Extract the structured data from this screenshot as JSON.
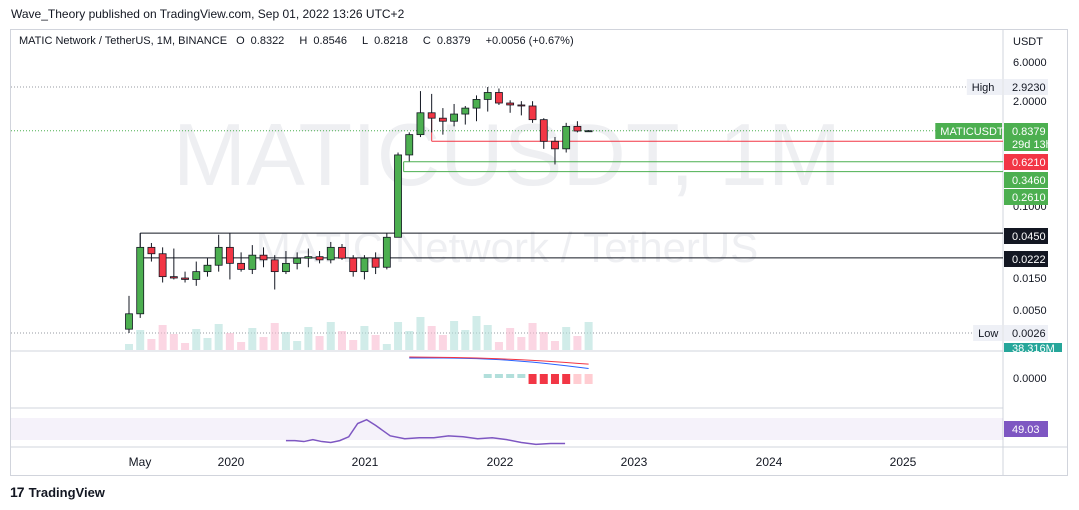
{
  "publisher": "Wave_Theory published on TradingView.com, Sep 01, 2022 13:26 UTC+2",
  "brand": {
    "name": "TradingView",
    "logo_mark": "17"
  },
  "header": {
    "symbol_line": "MATIC Network / TetherUS, 1M, BINANCE",
    "o_label": "O",
    "o": "0.8322",
    "h_label": "H",
    "h": "0.8546",
    "l_label": "L",
    "l": "0.8218",
    "c_label": "C",
    "c": "0.8379",
    "change": "+0.0056 (+0.67%)"
  },
  "watermark": {
    "symbol": "MATICUSDT, 1M",
    "name": "MATIC Network / TetherUS"
  },
  "colors": {
    "up": "#4caf50",
    "down": "#f23645",
    "grid": "#f0f3fa",
    "border": "#d1d4dc",
    "rsi": "#7e57c2",
    "macd": "#2962ff",
    "signal": "#f23645",
    "vol_up": "#b2dfdb",
    "vol_down": "#f8bbd0"
  },
  "chart_data": {
    "type": "candlestick",
    "scale": "log",
    "currency_label": "USDT",
    "x_ticks": [
      "May",
      "2020",
      "2021",
      "2022",
      "2023",
      "2024",
      "2025"
    ],
    "y_ticks": [
      "6.0000",
      "2.0000",
      "0.1000",
      "0.0150",
      "0.0050",
      "0.0000"
    ],
    "price_labels": [
      {
        "text": "2.9230",
        "tag": "High",
        "style": "plain"
      },
      {
        "text": "0.8379",
        "tag": "MATICUSDT",
        "sub": "29d 13h",
        "style": "green"
      },
      {
        "text": "0.6210",
        "style": "red"
      },
      {
        "text": "0.3460",
        "style": "green"
      },
      {
        "text": "0.2610",
        "style": "green"
      },
      {
        "text": "0.0450",
        "style": "black"
      },
      {
        "text": "0.0222",
        "style": "black"
      },
      {
        "text": "0.0026",
        "tag": "Low",
        "style": "plain"
      }
    ],
    "volume_label": "38.316M",
    "rsi_value": "49.03",
    "horizontal_levels": [
      0.621,
      0.346,
      0.261,
      0.045,
      0.0222
    ],
    "candles": [
      {
        "t": "2019-04",
        "o": 0.0029,
        "h": 0.0075,
        "l": 0.0026,
        "c": 0.0045
      },
      {
        "t": "2019-05",
        "o": 0.0045,
        "h": 0.045,
        "l": 0.004,
        "c": 0.03
      },
      {
        "t": "2019-06",
        "o": 0.03,
        "h": 0.034,
        "l": 0.02,
        "c": 0.025
      },
      {
        "t": "2019-07",
        "o": 0.025,
        "h": 0.03,
        "l": 0.011,
        "c": 0.013
      },
      {
        "t": "2019-08",
        "o": 0.013,
        "h": 0.029,
        "l": 0.012,
        "c": 0.0125
      },
      {
        "t": "2019-09",
        "o": 0.0125,
        "h": 0.015,
        "l": 0.011,
        "c": 0.012
      },
      {
        "t": "2019-10",
        "o": 0.012,
        "h": 0.02,
        "l": 0.01,
        "c": 0.015
      },
      {
        "t": "2019-11",
        "o": 0.015,
        "h": 0.022,
        "l": 0.013,
        "c": 0.018
      },
      {
        "t": "2019-12",
        "o": 0.018,
        "h": 0.043,
        "l": 0.015,
        "c": 0.03
      },
      {
        "t": "2020-01",
        "o": 0.03,
        "h": 0.045,
        "l": 0.012,
        "c": 0.019
      },
      {
        "t": "2020-02",
        "o": 0.019,
        "h": 0.026,
        "l": 0.015,
        "c": 0.016
      },
      {
        "t": "2020-03",
        "o": 0.016,
        "h": 0.032,
        "l": 0.014,
        "c": 0.024
      },
      {
        "t": "2020-04",
        "o": 0.024,
        "h": 0.03,
        "l": 0.017,
        "c": 0.021
      },
      {
        "t": "2020-05",
        "o": 0.021,
        "h": 0.024,
        "l": 0.009,
        "c": 0.015
      },
      {
        "t": "2020-06",
        "o": 0.015,
        "h": 0.027,
        "l": 0.014,
        "c": 0.019
      },
      {
        "t": "2020-07",
        "o": 0.019,
        "h": 0.026,
        "l": 0.016,
        "c": 0.022
      },
      {
        "t": "2020-08",
        "o": 0.022,
        "h": 0.029,
        "l": 0.017,
        "c": 0.023
      },
      {
        "t": "2020-09",
        "o": 0.023,
        "h": 0.027,
        "l": 0.019,
        "c": 0.021
      },
      {
        "t": "2020-10",
        "o": 0.021,
        "h": 0.035,
        "l": 0.019,
        "c": 0.03
      },
      {
        "t": "2020-11",
        "o": 0.03,
        "h": 0.033,
        "l": 0.021,
        "c": 0.022
      },
      {
        "t": "2020-12",
        "o": 0.022,
        "h": 0.024,
        "l": 0.013,
        "c": 0.015
      },
      {
        "t": "2021-01",
        "o": 0.015,
        "h": 0.024,
        "l": 0.012,
        "c": 0.022
      },
      {
        "t": "2021-02",
        "o": 0.022,
        "h": 0.026,
        "l": 0.014,
        "c": 0.017
      },
      {
        "t": "2021-03",
        "o": 0.017,
        "h": 0.045,
        "l": 0.016,
        "c": 0.04
      },
      {
        "t": "2021-04",
        "o": 0.04,
        "h": 0.45,
        "l": 0.04,
        "c": 0.42
      },
      {
        "t": "2021-05",
        "o": 0.42,
        "h": 0.8,
        "l": 0.35,
        "c": 0.75
      },
      {
        "t": "2021-06",
        "o": 0.75,
        "h": 2.6,
        "l": 0.7,
        "c": 1.4
      },
      {
        "t": "2021-07",
        "o": 1.4,
        "h": 2.4,
        "l": 0.8,
        "c": 1.2
      },
      {
        "t": "2021-08",
        "o": 1.2,
        "h": 1.6,
        "l": 0.75,
        "c": 1.1
      },
      {
        "t": "2021-09",
        "o": 1.1,
        "h": 1.8,
        "l": 0.95,
        "c": 1.35
      },
      {
        "t": "2021-10",
        "o": 1.35,
        "h": 1.7,
        "l": 1.0,
        "c": 1.6
      },
      {
        "t": "2021-11",
        "o": 1.6,
        "h": 2.3,
        "l": 1.1,
        "c": 2.05
      },
      {
        "t": "2021-12",
        "o": 2.05,
        "h": 2.92,
        "l": 1.45,
        "c": 2.5
      },
      {
        "t": "2022-01",
        "o": 2.5,
        "h": 2.8,
        "l": 1.75,
        "c": 1.85
      },
      {
        "t": "2022-02",
        "o": 1.85,
        "h": 2.0,
        "l": 1.4,
        "c": 1.75
      },
      {
        "t": "2022-03",
        "o": 1.75,
        "h": 1.95,
        "l": 1.3,
        "c": 1.7
      },
      {
        "t": "2022-04",
        "o": 1.7,
        "h": 1.95,
        "l": 1.05,
        "c": 1.15
      },
      {
        "t": "2022-05",
        "o": 1.15,
        "h": 1.2,
        "l": 0.5,
        "c": 0.62
      },
      {
        "t": "2022-06",
        "o": 0.62,
        "h": 0.7,
        "l": 0.32,
        "c": 0.5
      },
      {
        "t": "2022-07",
        "o": 0.5,
        "h": 1.05,
        "l": 0.45,
        "c": 0.95
      },
      {
        "t": "2022-08",
        "o": 0.95,
        "h": 1.1,
        "l": 0.8,
        "c": 0.8322
      },
      {
        "t": "2022-09",
        "o": 0.8322,
        "h": 0.8546,
        "l": 0.8218,
        "c": 0.8379
      }
    ]
  }
}
